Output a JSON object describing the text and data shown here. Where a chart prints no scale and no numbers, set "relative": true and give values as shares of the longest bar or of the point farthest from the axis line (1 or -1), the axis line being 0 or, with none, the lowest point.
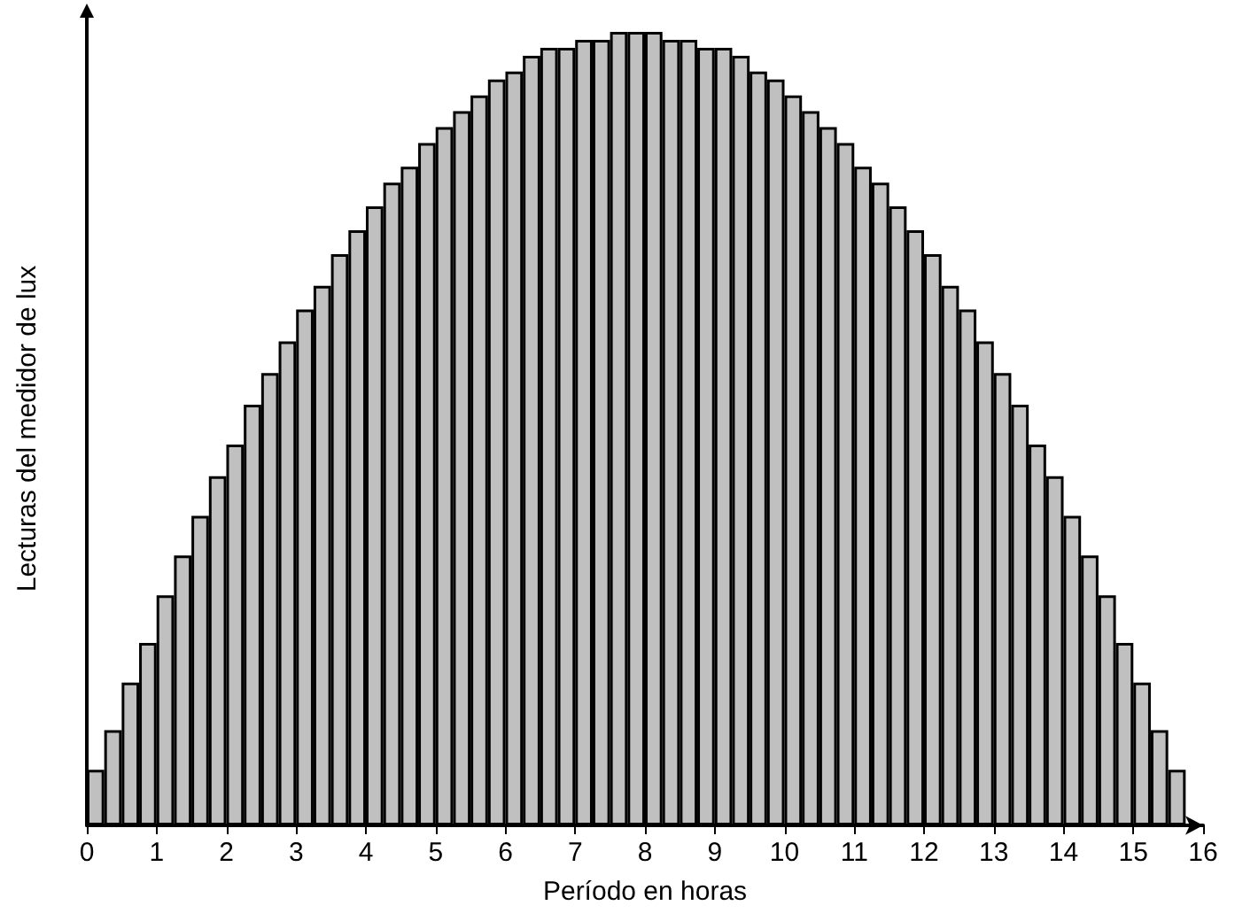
{
  "chart_data": {
    "type": "bar",
    "relative": true,
    "color": "#c0c0c0",
    "xlabel": "Período en horas",
    "ylabel": "Lecturas del medidor de lux",
    "x": [
      0.125,
      0.375,
      0.625,
      0.875,
      1.125,
      1.375,
      1.625,
      1.875,
      2.125,
      2.375,
      2.625,
      2.875,
      3.125,
      3.375,
      3.625,
      3.875,
      4.125,
      4.375,
      4.625,
      4.875,
      5.125,
      5.375,
      5.625,
      5.875,
      6.125,
      6.375,
      6.625,
      6.875,
      7.125,
      7.375,
      7.625,
      7.875,
      8.125,
      8.375,
      8.625,
      8.875,
      9.125,
      9.375,
      9.625,
      9.875,
      10.125,
      10.375,
      10.625,
      10.875,
      11.125,
      11.375,
      11.625,
      11.875,
      12.125,
      12.375,
      12.625,
      12.875,
      13.125,
      13.375,
      13.625,
      13.875,
      14.125,
      14.375,
      14.625,
      14.875,
      15.125,
      15.375,
      15.625
    ],
    "values": [
      0.07,
      0.12,
      0.18,
      0.23,
      0.29,
      0.34,
      0.39,
      0.44,
      0.48,
      0.53,
      0.57,
      0.61,
      0.65,
      0.68,
      0.72,
      0.75,
      0.78,
      0.81,
      0.83,
      0.86,
      0.88,
      0.9,
      0.92,
      0.94,
      0.95,
      0.97,
      0.98,
      0.98,
      0.99,
      0.99,
      1,
      1,
      1,
      0.99,
      0.99,
      0.98,
      0.98,
      0.97,
      0.95,
      0.94,
      0.92,
      0.9,
      0.88,
      0.86,
      0.83,
      0.81,
      0.78,
      0.75,
      0.72,
      0.68,
      0.65,
      0.61,
      0.57,
      0.53,
      0.48,
      0.44,
      0.39,
      0.34,
      0.29,
      0.23,
      0.18,
      0.12,
      0.07
    ],
    "xlim": [
      0,
      16
    ],
    "xticks": [
      0,
      1,
      2,
      3,
      4,
      5,
      6,
      7,
      8,
      9,
      10,
      11,
      12,
      13,
      14,
      15,
      16
    ],
    "grid": false
  }
}
